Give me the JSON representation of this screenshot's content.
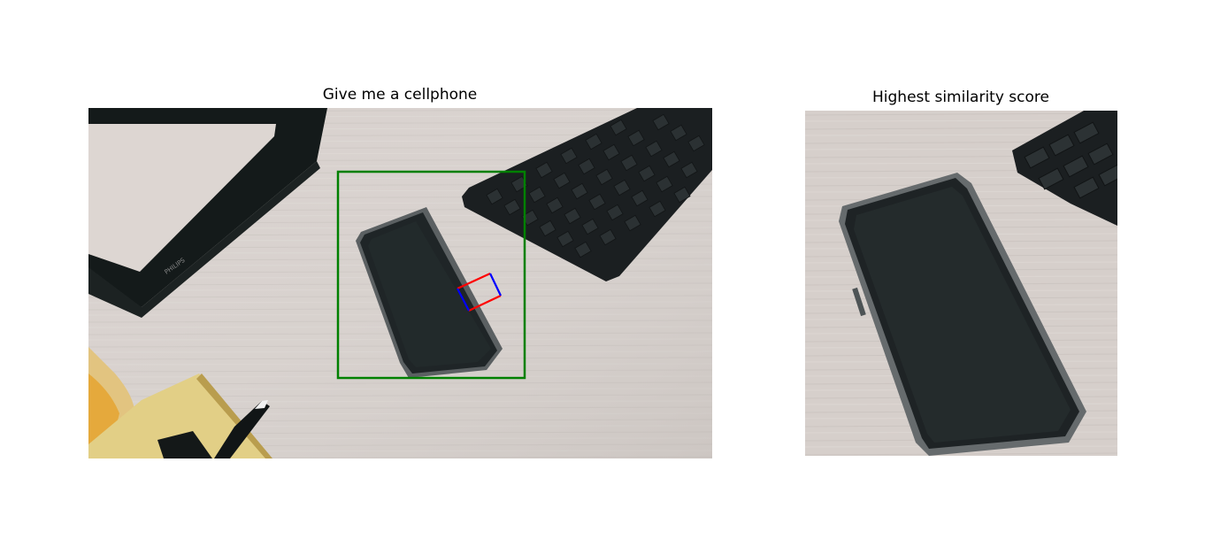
{
  "left_panel": {
    "title": "Give me a cellphone",
    "scene": [
      "desk-surface",
      "monitor-stand",
      "keyboard",
      "cellphone",
      "notebook",
      "pen",
      "jar"
    ],
    "monitor_brand_text": "PHILIPS",
    "overlays": {
      "detection_box_color": "#008000",
      "grasp_rect_long_side_color": "#ff0000",
      "grasp_rect_short_side_color": "#0000ff"
    }
  },
  "right_panel": {
    "title": "Highest similarity score",
    "scene": [
      "desk-surface",
      "cellphone-crop",
      "keyboard-corner"
    ]
  },
  "colors": {
    "desk": "#d6cfcb",
    "device_dark": "#23282a"
  }
}
